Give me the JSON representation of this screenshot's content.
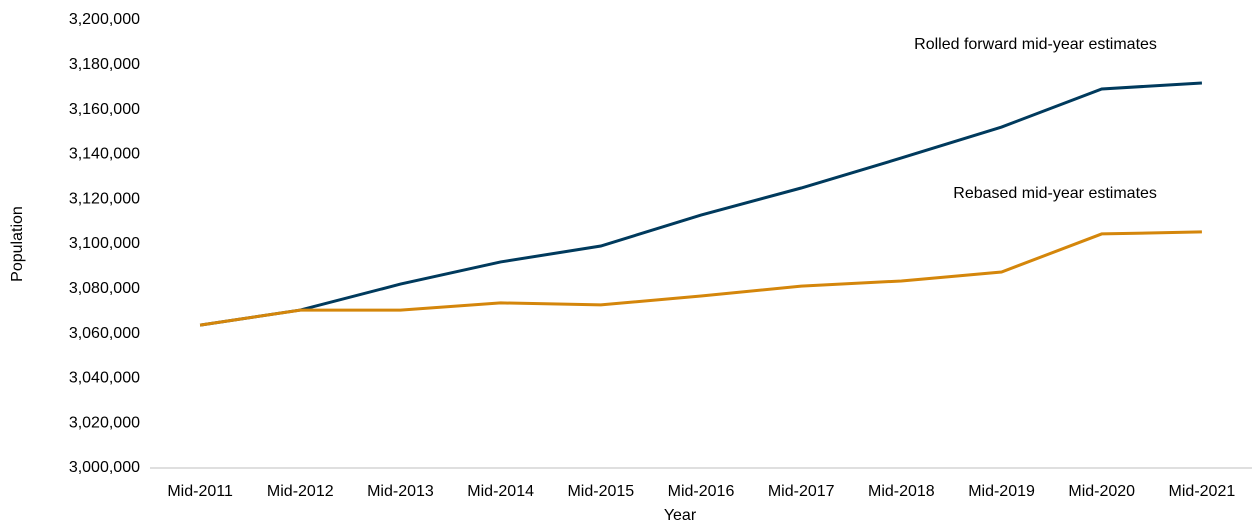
{
  "chart_data": {
    "type": "line",
    "xlabel": "Year",
    "ylabel": "Population",
    "categories": [
      "Mid-2011",
      "Mid-2012",
      "Mid-2013",
      "Mid-2014",
      "Mid-2015",
      "Mid-2016",
      "Mid-2017",
      "Mid-2018",
      "Mid-2019",
      "Mid-2020",
      "Mid-2021"
    ],
    "series": [
      {
        "name": "Rolled forward mid-year estimates",
        "color": "#003a5d",
        "values": [
          3063800,
          3070500,
          3082100,
          3092000,
          3099100,
          3112900,
          3125000,
          3138400,
          3152200,
          3169200,
          3171900
        ]
      },
      {
        "name": "Rebased mid-year estimates",
        "color": "#d4860b",
        "values": [
          3063800,
          3070500,
          3070500,
          3073700,
          3072800,
          3076800,
          3081200,
          3083500,
          3087500,
          3104500,
          3105400
        ]
      }
    ],
    "ylim": [
      3000000,
      3200000
    ],
    "yticks": [
      {
        "value": 3000000,
        "label": "3,000,000"
      },
      {
        "value": 3020000,
        "label": "3,020,000"
      },
      {
        "value": 3040000,
        "label": "3,040,000"
      },
      {
        "value": 3060000,
        "label": "3,060,000"
      },
      {
        "value": 3080000,
        "label": "3,080,000"
      },
      {
        "value": 3100000,
        "label": "3,100,000"
      },
      {
        "value": 3120000,
        "label": "3,120,000"
      },
      {
        "value": 3140000,
        "label": "3,140,000"
      },
      {
        "value": 3160000,
        "label": "3,160,000"
      },
      {
        "value": 3180000,
        "label": "3,180,000"
      },
      {
        "value": 3200000,
        "label": "3,200,000"
      }
    ],
    "grid": false
  }
}
